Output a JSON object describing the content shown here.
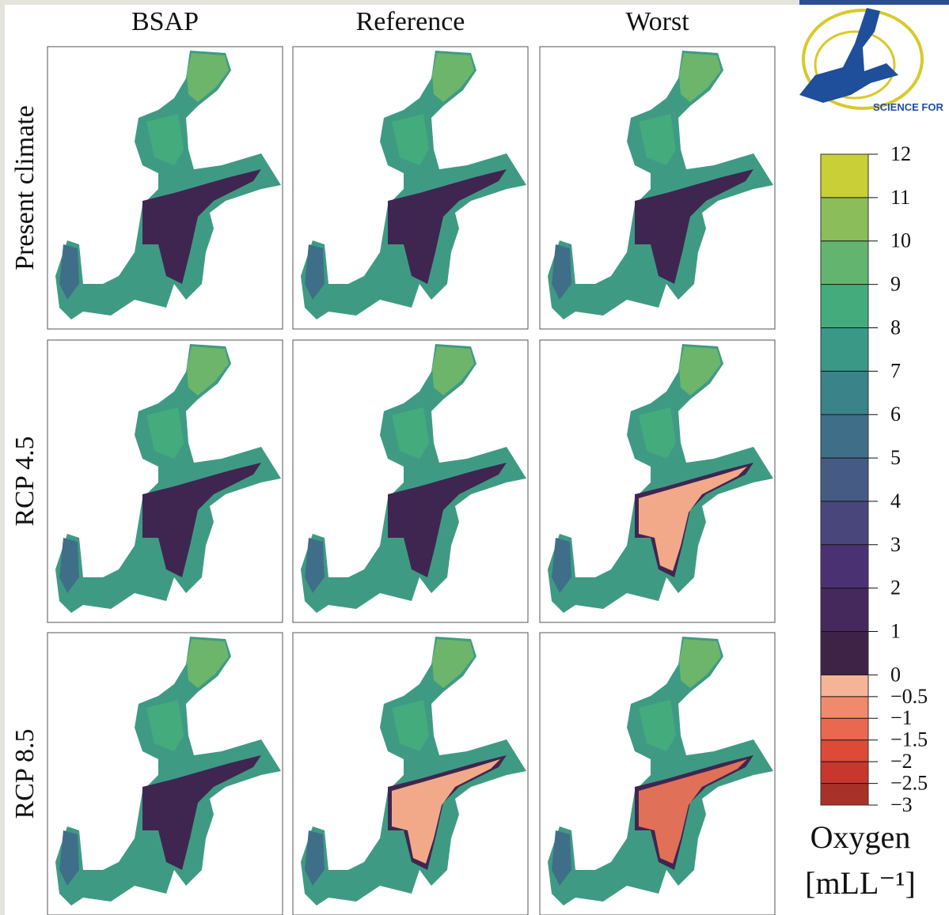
{
  "chart_data": {
    "type": "map-panels",
    "logo_text": "SCIENCE FOR",
    "columns": [
      "BSAP",
      "Reference",
      "Worst"
    ],
    "rows": [
      "Present climate",
      "RCP 4.5",
      "RCP 8.5"
    ],
    "colorbar": {
      "label": "Oxygen",
      "unit": "[mLL⁻¹]",
      "ylim": [
        -3,
        12
      ],
      "ticks": [
        {
          "value": -3,
          "label": "−3"
        },
        {
          "value": -2.5,
          "label": "−2.5"
        },
        {
          "value": -2,
          "label": "−2"
        },
        {
          "value": -1.5,
          "label": "−1.5"
        },
        {
          "value": -1,
          "label": "−1"
        },
        {
          "value": -0.5,
          "label": "−0.5"
        },
        0,
        1,
        2,
        3,
        4,
        5,
        6,
        7,
        8,
        9,
        10,
        11,
        12
      ],
      "colors": [
        "#a83228",
        "#c8372d",
        "#dd4a38",
        "#e9684f",
        "#f08a6c",
        "#f6b497",
        "#3f2346",
        "#45285c",
        "#4a3272",
        "#49467c",
        "#465b84",
        "#3f6f88",
        "#3a8389",
        "#3a9886",
        "#44ab7c",
        "#63b46f",
        "#8bbd5b",
        "#c8cf37"
      ]
    }
  }
}
